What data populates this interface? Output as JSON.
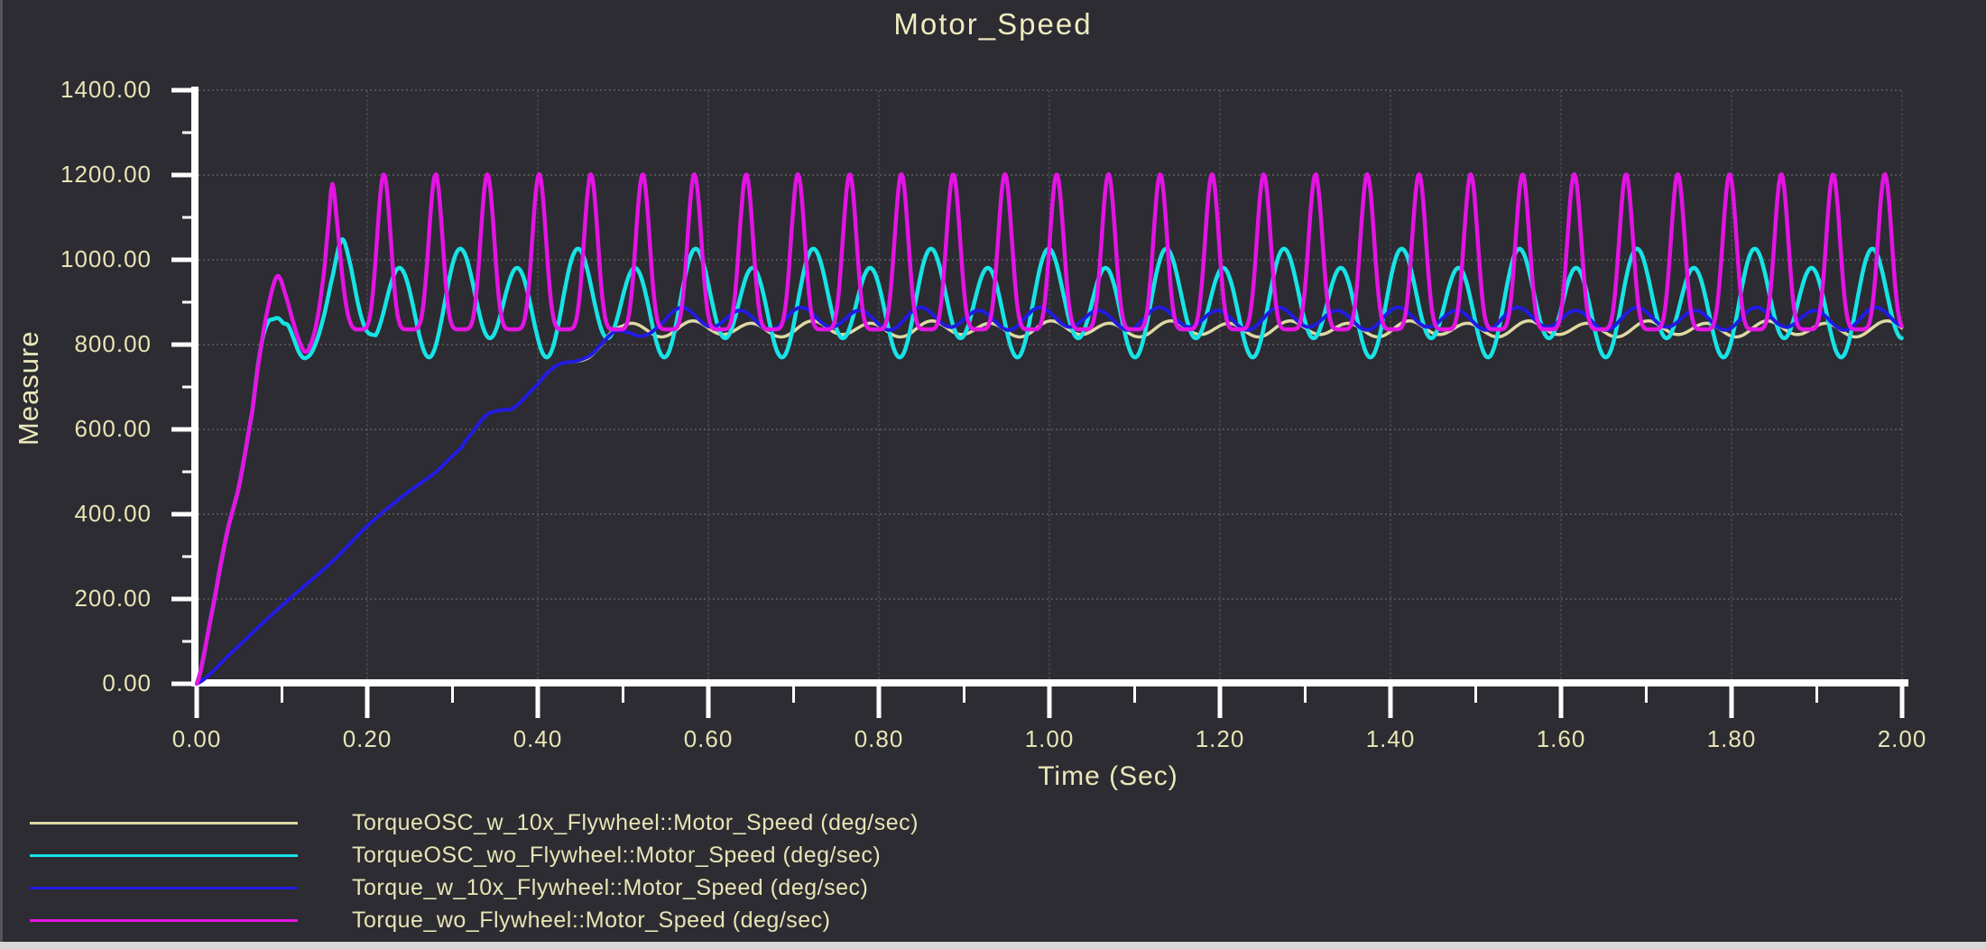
{
  "window": {
    "background": "#2c2c32",
    "left_edge_color": "#55555c",
    "bottom_edge_color": "#d8d8d8"
  },
  "colors": {
    "axis": "#ffffff",
    "text": "#e9e4b5",
    "title_text": "#f0ebc0",
    "grid_vertical": "#46464c",
    "grid_horizontal": "#5e5e62"
  },
  "chart_data": {
    "type": "line",
    "title": "Motor_Speed",
    "xlabel": "Time (Sec)",
    "ylabel": "Measure",
    "xlim": [
      0,
      2
    ],
    "ylim": [
      0,
      1400
    ],
    "x_major_step": 0.2,
    "x_minor_step": 0.1,
    "y_major_step": 200,
    "y_minor_step": 100,
    "grid": "dashed at major ticks",
    "legend_position": "bottom-left",
    "x_tick_labels": [
      "0.00",
      "0.20",
      "0.40",
      "0.60",
      "0.80",
      "1.00",
      "1.20",
      "1.40",
      "1.60",
      "1.80",
      "2.00"
    ],
    "y_tick_labels": [
      "0.00",
      "200.00",
      "400.00",
      "600.00",
      "800.00",
      "1000.00",
      "1200.00",
      "1400.00"
    ],
    "series": [
      {
        "name": "TorqueOSC_w_10x_Flywheel",
        "label": "TorqueOSC_w_10x_Flywheel::Motor_Speed (deg/sec)",
        "color": "#ded9a4",
        "width": 3.5,
        "signal": {
          "keypoints": [
            [
              0,
              0
            ],
            [
              0.04,
              72
            ],
            [
              0.08,
              148
            ],
            [
              0.12,
              220
            ],
            [
              0.16,
              290
            ],
            [
              0.2,
              372
            ],
            [
              0.24,
              440
            ],
            [
              0.28,
              498
            ],
            [
              0.31,
              556
            ],
            [
              0.325,
              598
            ],
            [
              0.34,
              634
            ],
            [
              0.355,
              645
            ],
            [
              0.372,
              652
            ],
            [
              0.4,
              706
            ],
            [
              0.415,
              740
            ],
            [
              0.428,
              756
            ],
            [
              0.445,
              760
            ],
            [
              0.46,
              770
            ],
            [
              0.475,
              800
            ],
            [
              0.487,
              831
            ],
            [
              0.5,
              844
            ]
          ],
          "osc": {
            "start": 0.5,
            "shape": "sum",
            "base": 837,
            "comps": [
              {
                "amp": 16,
                "period": 0.07,
                "t0": 0.5637
              },
              {
                "amp": 4,
                "period": 0.14,
                "t0": 0.5637
              }
            ]
          }
        }
      },
      {
        "name": "TorqueOSC_wo_Flywheel",
        "label": "TorqueOSC_wo_Flywheel::Motor_Speed (deg/sec)",
        "color": "#17e3e6",
        "width": 4.5,
        "signal": {
          "keypoints": [
            [
              0,
              0
            ],
            [
              0.018,
              170
            ],
            [
              0.035,
              350
            ],
            [
              0.05,
              470
            ],
            [
              0.065,
              640
            ],
            [
              0.075,
              790
            ],
            [
              0.083,
              850
            ],
            [
              0.09,
              860
            ],
            [
              0.096,
              862
            ],
            [
              0.102,
              850
            ],
            [
              0.107,
              846
            ],
            [
              0.113,
              818
            ],
            [
              0.12,
              782
            ],
            [
              0.127,
              768
            ],
            [
              0.137,
              790
            ],
            [
              0.148,
              858
            ],
            [
              0.158,
              950
            ],
            [
              0.17,
              1047
            ],
            [
              0.179,
              998
            ],
            [
              0.19,
              890
            ],
            [
              0.199,
              833
            ],
            [
              0.21,
              822
            ]
          ],
          "osc": {
            "start": 0.21,
            "shape": "sum",
            "base": 898,
            "comps": [
              {
                "amp": 32,
                "period": 0.138,
                "t0": 0.1528
              },
              {
                "amp": 105,
                "period": 0.069,
                "t0": 0.1528
              }
            ]
          }
        }
      },
      {
        "name": "Torque_w_10x_Flywheel",
        "label": "Torque_w_10x_Flywheel::Motor_Speed (deg/sec)",
        "color": "#221be0",
        "width": 4,
        "signal": {
          "keypoints": [
            [
              0,
              0
            ],
            [
              0.04,
              72
            ],
            [
              0.08,
              148
            ],
            [
              0.12,
              220
            ],
            [
              0.16,
              290
            ],
            [
              0.2,
              372
            ],
            [
              0.24,
              440
            ],
            [
              0.28,
              498
            ],
            [
              0.31,
              556
            ],
            [
              0.325,
              598
            ],
            [
              0.34,
              634
            ],
            [
              0.355,
              645
            ],
            [
              0.372,
              652
            ],
            [
              0.4,
              706
            ],
            [
              0.415,
              740
            ],
            [
              0.428,
              756
            ],
            [
              0.445,
              761
            ],
            [
              0.462,
              775
            ],
            [
              0.476,
              804
            ],
            [
              0.49,
              831
            ],
            [
              0.505,
              829
            ],
            [
              0.52,
              820
            ],
            [
              0.532,
              827
            ],
            [
              0.545,
              848
            ]
          ],
          "osc": {
            "start": 0.545,
            "shape": "sum",
            "base": 861,
            "comps": [
              {
                "amp": 23,
                "period": 0.07,
                "t0": 0.5507
              },
              {
                "amp": 5,
                "period": 0.14,
                "t0": 0.5507
              }
            ]
          }
        }
      },
      {
        "name": "Torque_wo_Flywheel",
        "label": "Torque_wo_Flywheel::Motor_Speed (deg/sec)",
        "color": "#e314e3",
        "width": 4.5,
        "signal": {
          "keypoints": [
            [
              0,
              0
            ],
            [
              0.018,
              170
            ],
            [
              0.035,
              350
            ],
            [
              0.05,
              470
            ],
            [
              0.065,
              640
            ],
            [
              0.075,
              790
            ],
            [
              0.085,
              900
            ],
            [
              0.095,
              962
            ],
            [
              0.105,
              912
            ],
            [
              0.114,
              848
            ],
            [
              0.121,
              805
            ],
            [
              0.127,
              783
            ],
            [
              0.133,
              797
            ],
            [
              0.141,
              855
            ],
            [
              0.149,
              965
            ],
            [
              0.155,
              1095
            ],
            [
              0.159,
              1179
            ],
            [
              0.164,
              1100
            ],
            [
              0.17,
              975
            ],
            [
              0.176,
              885
            ],
            [
              0.181,
              848
            ],
            [
              0.185,
              838
            ]
          ],
          "osc": {
            "start": 0.185,
            "shape": "pulse",
            "base": 836,
            "amp": 366,
            "period": 0.0607,
            "peak_t": 0.2195,
            "power": 3
          }
        }
      }
    ]
  }
}
